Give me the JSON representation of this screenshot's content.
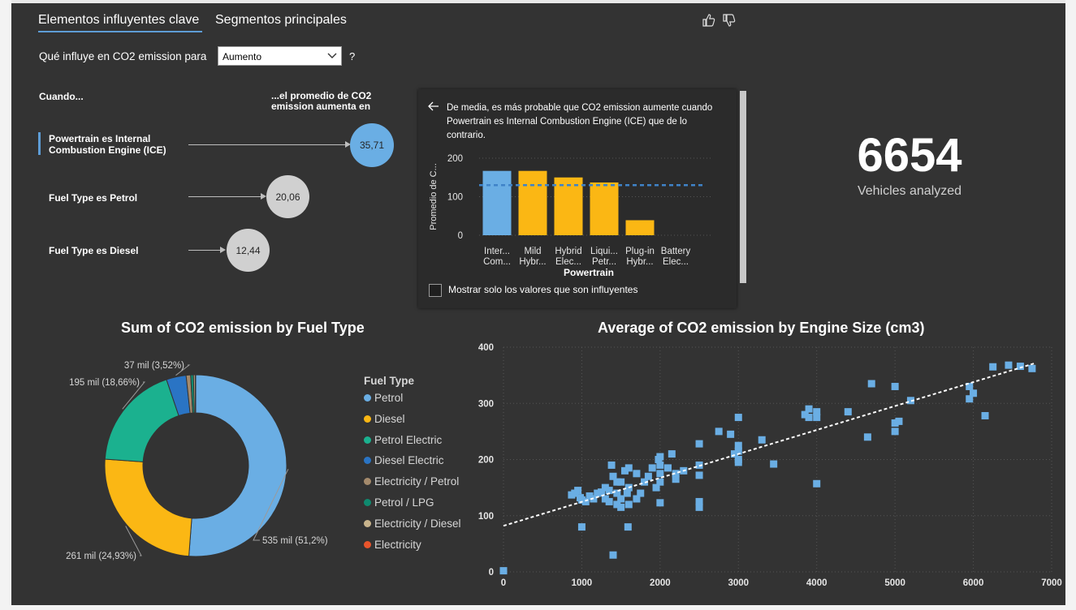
{
  "tabs": {
    "key_influencers": "Elementos influyentes clave",
    "top_segments": "Segmentos principales"
  },
  "question": {
    "prefix": "Qué influye en CO2 emission para",
    "dropdown_value": "Aumento",
    "help": "?"
  },
  "influencers": {
    "when_header": "Cuando...",
    "avg_header_line1": "...el promedio de CO2",
    "avg_header_line2": "emission aumenta en",
    "items": [
      {
        "line1": "Powertrain es Internal",
        "line2": "Combustion Engine (ICE)",
        "value": "35,71"
      },
      {
        "line1": "Fuel Type es Petrol",
        "line2": "",
        "value": "20,06"
      },
      {
        "line1": "Fuel Type es Diesel",
        "line2": "",
        "value": "12,44"
      }
    ]
  },
  "detail": {
    "text_line1": "De media, es más probable que CO2 emission aumente cuando",
    "text_line2": "Powertrain es Internal Combustion Engine (ICE) que de lo",
    "text_line3": "contrario.",
    "checkbox_label": "Mostrar solo los valores que son influyentes",
    "chart": {
      "ylabel": "Promedio de C...",
      "xlabel": "Powertrain",
      "yticks": [
        "200",
        "100",
        "0"
      ],
      "ylim": [
        0,
        200
      ],
      "average_line": 130,
      "categories": [
        {
          "l1": "Inter...",
          "l2": "Com...",
          "value": 167,
          "color": "#6aaee4"
        },
        {
          "l1": "Mild",
          "l2": "Hybr...",
          "value": 167,
          "color": "#fbb714"
        },
        {
          "l1": "Hybrid",
          "l2": "Elec...",
          "value": 150,
          "color": "#fbb714"
        },
        {
          "l1": "Liqui...",
          "l2": "Petr...",
          "value": 137,
          "color": "#fbb714"
        },
        {
          "l1": "Plug-in",
          "l2": "Hybr...",
          "value": 39,
          "color": "#fbb714"
        },
        {
          "l1": "Battery",
          "l2": "Elec...",
          "value": 0,
          "color": "#fbb714"
        }
      ]
    }
  },
  "kpi": {
    "value": "6654",
    "label": "Vehicles analyzed"
  },
  "chart_data": [
    {
      "type": "pie",
      "title": "Sum of CO2 emission by Fuel Type",
      "legend_title": "Fuel Type",
      "slices": [
        {
          "name": "Petrol",
          "value": 51.2,
          "label": "535 mil (51,2%)",
          "color": "#6aaee4"
        },
        {
          "name": "Diesel",
          "value": 24.93,
          "label": "261 mil (24,93%)",
          "color": "#fbb714"
        },
        {
          "name": "Petrol Electric",
          "value": 18.66,
          "label": "195 mil (18,66%)",
          "color": "#1bb18f"
        },
        {
          "name": "Diesel Electric",
          "value": 3.52,
          "label": "37 mil (3,52%)",
          "color": "#2a74c4"
        },
        {
          "name": "Electricity / Petrol",
          "value": 0.8,
          "label": "",
          "color": "#a48a6c"
        },
        {
          "name": "Petrol / LPG",
          "value": 0.5,
          "label": "",
          "color": "#0f8a6f"
        },
        {
          "name": "Electricity / Diesel",
          "value": 0.3,
          "label": "",
          "color": "#c8b48c"
        },
        {
          "name": "Electricity",
          "value": 0.09,
          "label": "",
          "color": "#e8542b"
        }
      ]
    },
    {
      "type": "scatter",
      "title": "Average of CO2 emission by Engine Size (cm3)",
      "xlim": [
        0,
        7000
      ],
      "ylim": [
        0,
        400
      ],
      "xticks": [
        "0",
        "1000",
        "2000",
        "3000",
        "4000",
        "5000",
        "6000",
        "7000"
      ],
      "yticks": [
        "400",
        "300",
        "200",
        "100",
        "0"
      ],
      "trendline": [
        [
          0,
          82
        ],
        [
          6800,
          372
        ]
      ],
      "points": [
        [
          0,
          2
        ],
        [
          870,
          137
        ],
        [
          910,
          140
        ],
        [
          950,
          145
        ],
        [
          980,
          132
        ],
        [
          1000,
          128
        ],
        [
          1000,
          80
        ],
        [
          1050,
          125
        ],
        [
          1100,
          135
        ],
        [
          1150,
          130
        ],
        [
          1200,
          140
        ],
        [
          1250,
          142
        ],
        [
          1300,
          150
        ],
        [
          1300,
          130
        ],
        [
          1350,
          145
        ],
        [
          1350,
          125
        ],
        [
          1380,
          190
        ],
        [
          1400,
          170
        ],
        [
          1400,
          30
        ],
        [
          1450,
          160
        ],
        [
          1450,
          140
        ],
        [
          1450,
          120
        ],
        [
          1500,
          160
        ],
        [
          1500,
          130
        ],
        [
          1500,
          115
        ],
        [
          1550,
          180
        ],
        [
          1580,
          140
        ],
        [
          1590,
          80
        ],
        [
          1600,
          185
        ],
        [
          1600,
          150
        ],
        [
          1600,
          120
        ],
        [
          1700,
          130
        ],
        [
          1700,
          175
        ],
        [
          1750,
          140
        ],
        [
          1800,
          160
        ],
        [
          1850,
          170
        ],
        [
          1900,
          185
        ],
        [
          1950,
          150
        ],
        [
          1980,
          200
        ],
        [
          2000,
          205
        ],
        [
          2000,
          160
        ],
        [
          2000,
          175
        ],
        [
          2000,
          190
        ],
        [
          2000,
          123
        ],
        [
          2100,
          185
        ],
        [
          2150,
          210
        ],
        [
          2200,
          175
        ],
        [
          2200,
          165
        ],
        [
          2300,
          180
        ],
        [
          2500,
          228
        ],
        [
          2500,
          190
        ],
        [
          2500,
          172
        ],
        [
          2500,
          125
        ],
        [
          2500,
          115
        ],
        [
          2750,
          250
        ],
        [
          2900,
          245
        ],
        [
          2950,
          210
        ],
        [
          3000,
          275
        ],
        [
          3000,
          225
        ],
        [
          3000,
          200
        ],
        [
          3000,
          215
        ],
        [
          3000,
          195
        ],
        [
          3300,
          235
        ],
        [
          3450,
          192
        ],
        [
          3850,
          280
        ],
        [
          3900,
          275
        ],
        [
          3900,
          290
        ],
        [
          4000,
          275
        ],
        [
          4000,
          285
        ],
        [
          4000,
          157
        ],
        [
          4400,
          285
        ],
        [
          4650,
          240
        ],
        [
          4700,
          335
        ],
        [
          5000,
          330
        ],
        [
          5000,
          265
        ],
        [
          5000,
          250
        ],
        [
          5050,
          268
        ],
        [
          5200,
          305
        ],
        [
          5950,
          330
        ],
        [
          5950,
          308
        ],
        [
          6000,
          318
        ],
        [
          6150,
          278
        ],
        [
          6250,
          365
        ],
        [
          6450,
          368
        ],
        [
          6600,
          366
        ],
        [
          6750,
          362
        ]
      ]
    }
  ]
}
